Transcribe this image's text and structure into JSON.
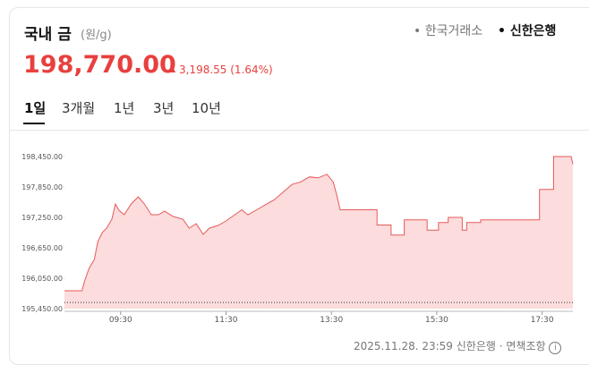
{
  "header": {
    "title": "국내 금",
    "unit": "(원/g)",
    "sources": [
      "한국거래소",
      "신한은행"
    ],
    "price": "198,770.00",
    "change": "3,198.55 (1.64%)"
  },
  "tabs": [
    "1일",
    "3개월",
    "1년",
    "3년",
    "10년"
  ],
  "footer": {
    "timestamp": "2025.11.28. 23:59",
    "source": "신한은행",
    "disclaimer": "면책조항"
  },
  "chart_data": {
    "type": "area",
    "color": "#e55a5a",
    "fill": "#fcdcdc",
    "x": [
      "08:26",
      "08:46",
      "08:49",
      "08:54",
      "09:00",
      "09:04",
      "09:09",
      "09:14",
      "09:20",
      "09:24",
      "09:28",
      "09:34",
      "09:42",
      "09:50",
      "09:57",
      "10:05",
      "10:13",
      "10:20",
      "10:30",
      "10:41",
      "10:48",
      "10:56",
      "11:04",
      "11:11",
      "11:21",
      "11:30",
      "11:40",
      "11:48",
      "11:55",
      "12:05",
      "12:15",
      "12:25",
      "12:35",
      "12:45",
      "12:55",
      "13:05",
      "13:15",
      "13:25",
      "13:32",
      "13:36",
      "13:40",
      "14:22",
      "14:22",
      "14:38",
      "14:38",
      "14:53",
      "14:53",
      "15:19",
      "15:19",
      "15:32",
      "15:32",
      "15:43",
      "15:43",
      "15:59",
      "15:59",
      "16:04",
      "16:04",
      "16:20",
      "16:20",
      "17:27",
      "17:27",
      "17:43",
      "17:43",
      "18:03",
      "18:05"
    ],
    "values": [
      195803,
      195803,
      196000,
      196244,
      196420,
      196773,
      196950,
      197038,
      197215,
      197515,
      197391,
      197303,
      197515,
      197656,
      197515,
      197303,
      197303,
      197373,
      197268,
      197215,
      197038,
      197126,
      196915,
      197038,
      197091,
      197180,
      197303,
      197400,
      197300,
      197400,
      197500,
      197600,
      197750,
      197900,
      197950,
      198050,
      198030,
      198100,
      197950,
      197700,
      197400,
      197400,
      197100,
      197100,
      196900,
      196900,
      197200,
      197200,
      197000,
      197000,
      197150,
      197150,
      197250,
      197250,
      197000,
      197000,
      197150,
      197150,
      197200,
      197200,
      197800,
      197800,
      198450,
      198450,
      198300
    ],
    "previous_close": 195571.45,
    "xlim": [
      "08:26",
      "18:05"
    ],
    "xticks": [
      "09:30",
      "11:30",
      "13:30",
      "15:30",
      "17:30"
    ],
    "ylim": [
      195450,
      198750
    ],
    "yticks": [
      {
        "value": 195450,
        "label": "195,450.00"
      },
      {
        "value": 196050,
        "label": "196,050.00"
      },
      {
        "value": 196650,
        "label": "196,650.00"
      },
      {
        "value": 197250,
        "label": "197,250.00"
      },
      {
        "value": 197850,
        "label": "197,850.00"
      },
      {
        "value": 198450,
        "label": "198,450.00"
      }
    ]
  }
}
